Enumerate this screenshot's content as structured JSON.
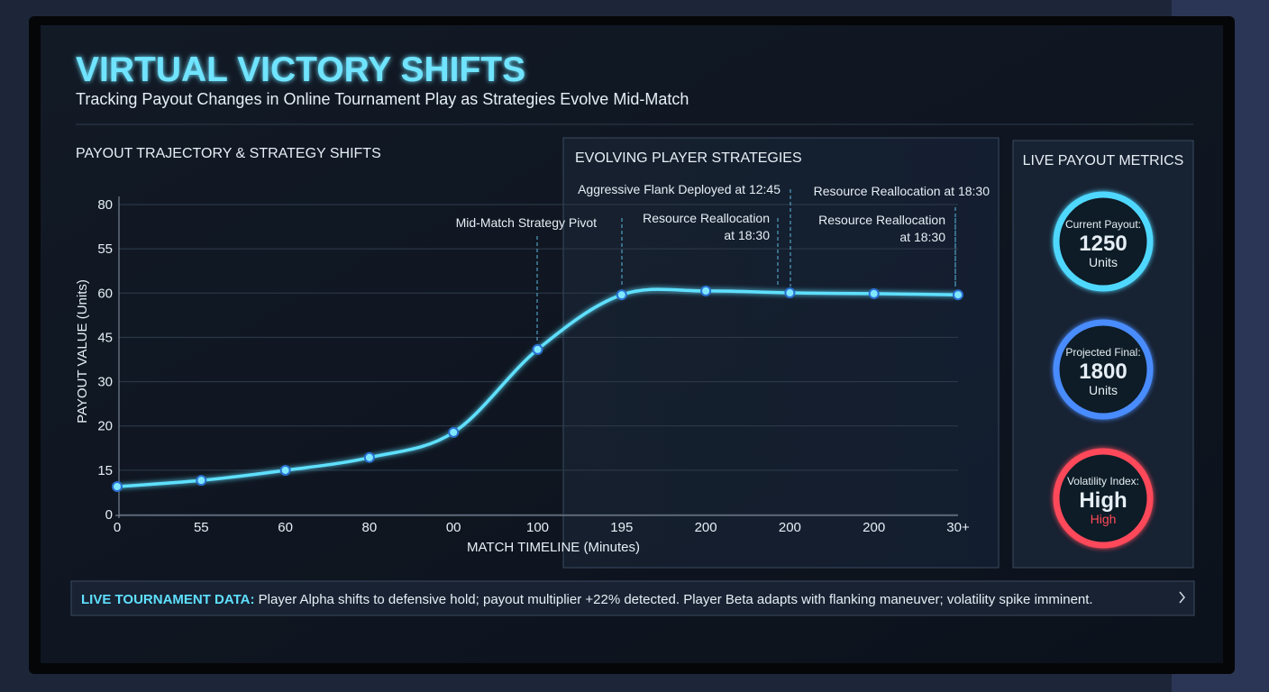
{
  "header": {
    "title": "VIRTUAL VICTORY SHIFTS",
    "subtitle": "Tracking Payout Changes in Online Tournament Play as Strategies Evolve Mid-Match"
  },
  "chart_data": {
    "type": "line",
    "title": "PAYOUT TRAJECTORY & STRATEGY SHIFTS",
    "x_label": "MATCH TIMELINE (Minutes)",
    "y_label": "PAYOUT VALUE (Units)",
    "categories": [
      "0",
      "55",
      "60",
      "80",
      "00",
      "100",
      "195",
      "200",
      "200",
      "200",
      "30+"
    ],
    "y_axis_labels": [
      "80",
      "55",
      "60",
      "45",
      "30",
      "20",
      "15",
      "0"
    ],
    "ylim": [
      0,
      80
    ],
    "series": [
      {
        "name": "Payout",
        "color": "#5fe0ff",
        "values": [
          7.2,
          8.8,
          11.4,
          14.7,
          21.2,
          42.6,
          56.7,
          57.7,
          57.2,
          57.0,
          56.7
        ]
      }
    ],
    "annotations": [
      {
        "text": [
          "Mid-Match Strategy Pivot"
        ]
      },
      {
        "text": [
          "Aggressive Flank Deployed at 12:45"
        ]
      },
      {
        "text": [
          "Resource Reallocation",
          "at 18:30"
        ]
      },
      {
        "text": [
          "Resource Reallocation at 18:30"
        ]
      },
      {
        "text": [
          "Resource Reallocation",
          "at 18:30"
        ]
      }
    ],
    "grid": true
  },
  "strategies_panel": {
    "title": "EVOLVING PLAYER STRATEGIES"
  },
  "metrics_panel": {
    "title": "LIVE PAYOUT METRICS",
    "metrics": [
      {
        "label": "Current Payout:",
        "value": 1250,
        "unit": "Units",
        "color": "#4fd8ff"
      },
      {
        "label": "Projected Final:",
        "value": 1800,
        "unit": "Units",
        "color": "#4a8cff"
      },
      {
        "label": "Volatility Index:",
        "value": "High",
        "unit": "High",
        "color": "#ff4a5a"
      }
    ]
  },
  "ticker": {
    "label": "LIVE TOURNAMENT DATA:",
    "text": "Player Alpha shifts to defensive hold; payout multiplier +22% detected. Player Beta adapts with flanking maneuver; volatility spike imminent."
  }
}
